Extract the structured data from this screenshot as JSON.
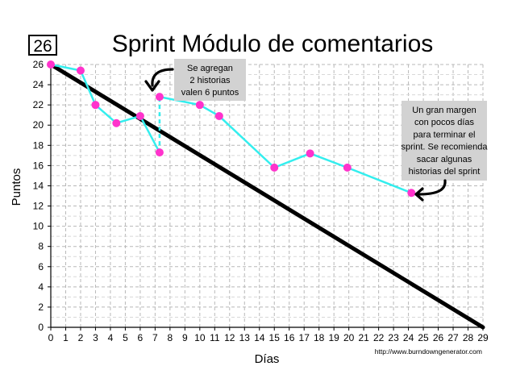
{
  "chart_data": {
    "type": "line",
    "title": "Sprint Módulo de comentarios",
    "badge": "26",
    "xlabel": "Días",
    "ylabel": "Puntos",
    "xlim": [
      0,
      29
    ],
    "ylim": [
      0,
      26
    ],
    "x_ticks": [
      0,
      1,
      2,
      3,
      4,
      5,
      6,
      7,
      8,
      9,
      10,
      11,
      12,
      13,
      14,
      15,
      16,
      17,
      18,
      19,
      20,
      21,
      22,
      23,
      24,
      25,
      26,
      27,
      28,
      29
    ],
    "y_ticks": [
      0,
      2,
      4,
      6,
      8,
      10,
      12,
      14,
      16,
      18,
      20,
      22,
      24,
      26
    ],
    "grid": true,
    "source_text": "http://www.burndowngenerator.com",
    "ideal": {
      "points": [
        [
          0,
          26
        ],
        [
          29,
          0
        ]
      ],
      "color": "#000000"
    },
    "actual": {
      "color": "#33eeee",
      "marker_color": "#ff33cc",
      "points": [
        [
          0,
          26
        ],
        [
          2,
          25.4
        ],
        [
          3,
          22
        ],
        [
          4.4,
          20.2
        ],
        [
          6,
          20.9
        ],
        [
          7.3,
          17.3
        ],
        [
          7.3,
          22.8
        ],
        [
          10,
          22
        ],
        [
          11.3,
          20.9
        ],
        [
          15,
          15.8
        ],
        [
          17.4,
          17.2
        ],
        [
          19.9,
          15.8
        ],
        [
          24.2,
          13.3
        ]
      ],
      "jump_index": 5
    },
    "annotations": [
      {
        "lines": [
          "Se agregan",
          "2 historias",
          "valen 6 puntos"
        ]
      },
      {
        "lines": [
          "Un gran margen",
          "con pocos días",
          "para terminar el",
          "sprint. Se recomienda",
          "sacar algunas",
          "historias del sprint"
        ]
      }
    ]
  }
}
